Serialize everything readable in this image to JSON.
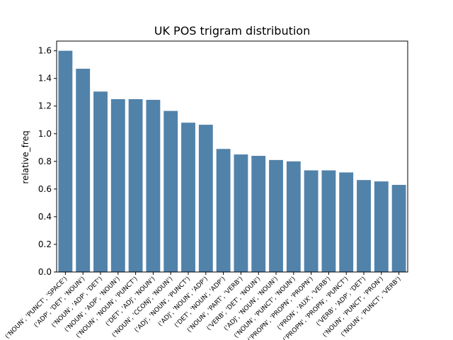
{
  "chart_data": {
    "type": "bar",
    "title": "UK POS trigram distribution",
    "xlabel": "",
    "ylabel": "relative_freq",
    "ylim": [
      0,
      1.67
    ],
    "yticks": [
      "0.0",
      "0.2",
      "0.4",
      "0.6",
      "0.8",
      "1.0",
      "1.2",
      "1.4",
      "1.6"
    ],
    "bar_color": "#5182aa",
    "categories": [
      "('NOUN', 'PUNCT', 'SPACE')",
      "('ADP', 'DET', 'NOUN')",
      "('NOUN', 'ADP', 'DET')",
      "('NOUN', 'ADP', 'NOUN')",
      "('NOUN', 'NOUN', 'PUNCT')",
      "('DET', 'ADJ', 'NOUN')",
      "('NOUN', 'CCONJ', 'NOUN')",
      "('ADJ', 'NOUN', 'PUNCT')",
      "('ADJ', 'NOUN', 'ADP')",
      "('DET', 'NOUN', 'ADP')",
      "('NOUN', 'PART', 'VERB')",
      "('VERB', 'DET', 'NOUN')",
      "('ADJ', 'NOUN', 'NOUN')",
      "('NOUN', 'PUNCT', 'NOUN')",
      "('PROPN', 'PROPN', 'PROPN')",
      "('PRON', 'AUX', 'VERB')",
      "('PROPN', 'PROPN', 'PUNCT')",
      "('VERB', 'ADP', 'DET')",
      "('NOUN', 'PUNCT', 'PRON')",
      "('NOUN', 'PUNCT', 'VERB')"
    ],
    "values": [
      1.6,
      1.47,
      1.305,
      1.25,
      1.25,
      1.245,
      1.165,
      1.08,
      1.065,
      0.89,
      0.85,
      0.84,
      0.81,
      0.8,
      0.735,
      0.735,
      0.72,
      0.665,
      0.655,
      0.63
    ]
  }
}
